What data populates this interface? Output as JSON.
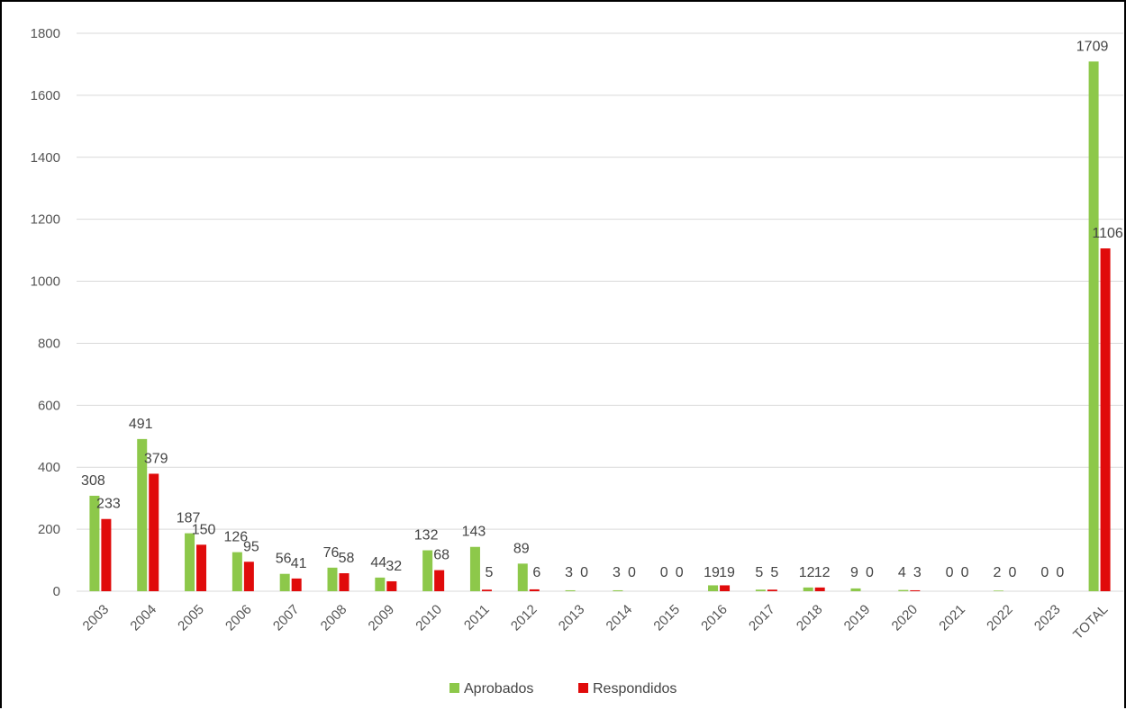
{
  "chart_data": {
    "type": "bar",
    "title": "",
    "xlabel": "",
    "ylabel": "",
    "ylim": [
      0,
      1800
    ],
    "yticks": [
      0,
      200,
      400,
      600,
      800,
      1000,
      1200,
      1400,
      1600,
      1800
    ],
    "grid": true,
    "legend_position": "bottom",
    "categories": [
      "2003",
      "2004",
      "2005",
      "2006",
      "2007",
      "2008",
      "2009",
      "2010",
      "2011",
      "2012",
      "2013",
      "2014",
      "2015",
      "2016",
      "2017",
      "2018",
      "2019",
      "2020",
      "2021",
      "2022",
      "2023",
      "TOTAL"
    ],
    "series": [
      {
        "name": "Aprobados",
        "color": "#8dc84a",
        "values": [
          308,
          491,
          187,
          126,
          56,
          76,
          44,
          132,
          143,
          89,
          3,
          3,
          0,
          19,
          5,
          12,
          9,
          4,
          0,
          2,
          0,
          1709
        ]
      },
      {
        "name": "Respondidos",
        "color": "#e00b0b",
        "values": [
          233,
          379,
          150,
          95,
          41,
          58,
          32,
          68,
          5,
          6,
          0,
          0,
          0,
          19,
          5,
          12,
          0,
          3,
          0,
          0,
          0,
          1106
        ]
      }
    ]
  }
}
